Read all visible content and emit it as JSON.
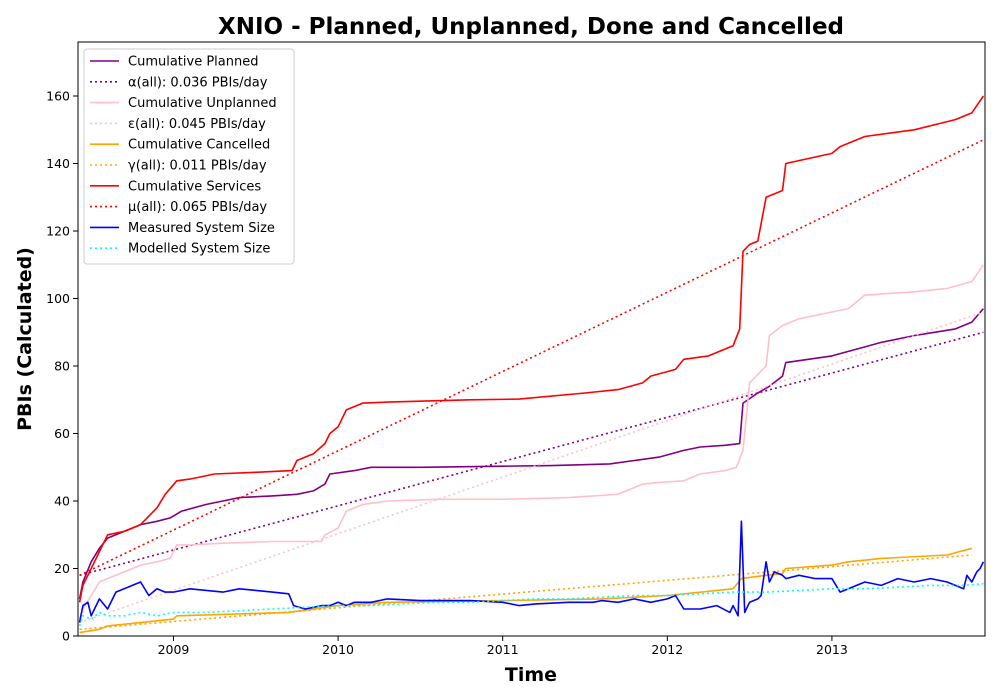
{
  "chart_data": {
    "type": "line",
    "title": "XNIO - Planned, Unplanned, Done  and Cancelled",
    "xlabel": "Time",
    "ylabel": "PBIs (Calculated)",
    "xlim": [
      2008.42,
      2013.93
    ],
    "ylim": [
      0,
      176
    ],
    "x_ticks": [
      {
        "value": 2009,
        "label": "2009"
      },
      {
        "value": 2010,
        "label": "2010"
      },
      {
        "value": 2011,
        "label": "2011"
      },
      {
        "value": 2012,
        "label": "2012"
      },
      {
        "value": 2013,
        "label": "2013"
      }
    ],
    "y_ticks": [
      {
        "value": 0,
        "label": "0"
      },
      {
        "value": 20,
        "label": "20"
      },
      {
        "value": 40,
        "label": "40"
      },
      {
        "value": 60,
        "label": "60"
      },
      {
        "value": 80,
        "label": "80"
      },
      {
        "value": 100,
        "label": "100"
      },
      {
        "value": 120,
        "label": "120"
      },
      {
        "value": 140,
        "label": "140"
      },
      {
        "value": 160,
        "label": "160"
      }
    ],
    "grid": false,
    "legend_position": "upper-left",
    "series": [
      {
        "name": "Cumulative Planned",
        "color": "#800080",
        "style": "solid",
        "x": [
          2008.43,
          2008.45,
          2008.5,
          2008.55,
          2008.6,
          2008.7,
          2008.8,
          2008.9,
          2008.98,
          2009.05,
          2009.2,
          2009.3,
          2009.4,
          2009.6,
          2009.75,
          2009.85,
          2009.92,
          2009.95,
          2010.1,
          2010.2,
          2010.5,
          2011.0,
          2011.3,
          2011.65,
          2011.8,
          2011.95,
          2012.1,
          2012.2,
          2012.35,
          2012.44,
          2012.46,
          2012.55,
          2012.62,
          2012.7,
          2012.72,
          2013.0,
          2013.15,
          2013.3,
          2013.5,
          2013.75,
          2013.85,
          2013.92
        ],
        "y": [
          11,
          16,
          22,
          26,
          29,
          31,
          33,
          34,
          35,
          37,
          39,
          40,
          41,
          41.5,
          42,
          43,
          45,
          48,
          49,
          50,
          50,
          50.3,
          50.5,
          51,
          52,
          53,
          55,
          56,
          56.5,
          57,
          69,
          72,
          74,
          77,
          81,
          83,
          85,
          87,
          89,
          91,
          93,
          97
        ]
      },
      {
        "name": "α(all): 0.036 PBIs/day",
        "color": "#800080",
        "style": "dotted",
        "x": [
          2008.43,
          2013.92
        ],
        "y": [
          18,
          90
        ]
      },
      {
        "name": "Cumulative Unplanned",
        "color": "#ffc0cb",
        "style": "solid",
        "x": [
          2008.43,
          2008.45,
          2008.5,
          2008.55,
          2008.6,
          2008.7,
          2008.8,
          2008.9,
          2008.98,
          2009.02,
          2009.1,
          2009.3,
          2009.6,
          2009.9,
          2009.92,
          2010.0,
          2010.05,
          2010.15,
          2010.3,
          2010.6,
          2011.0,
          2011.4,
          2011.7,
          2011.85,
          2011.95,
          2012.1,
          2012.2,
          2012.35,
          2012.42,
          2012.46,
          2012.5,
          2012.6,
          2012.62,
          2012.7,
          2012.8,
          2013.0,
          2013.1,
          2013.2,
          2013.5,
          2013.7,
          2013.85,
          2013.92
        ],
        "y": [
          5,
          8,
          12,
          16,
          17,
          19,
          21,
          22,
          23,
          27,
          27,
          27.5,
          28,
          28,
          30,
          32,
          37,
          39,
          40,
          40.5,
          40.5,
          41,
          42,
          45,
          45.5,
          46,
          48,
          49,
          50,
          55,
          75,
          80,
          89,
          92,
          94,
          96,
          97,
          101,
          102,
          103,
          105,
          110
        ]
      },
      {
        "name": "ε(all): 0.045 PBIs/day",
        "color": "#ffc0cb",
        "style": "dotted",
        "x": [
          2008.43,
          2013.92
        ],
        "y": [
          4,
          96
        ]
      },
      {
        "name": "Cumulative Cancelled",
        "color": "#ffa500",
        "style": "solid",
        "x": [
          2008.43,
          2008.55,
          2008.6,
          2009.0,
          2009.02,
          2009.7,
          2010.0,
          2010.3,
          2011.0,
          2011.6,
          2012.0,
          2012.4,
          2012.45,
          2012.6,
          2012.7,
          2012.72,
          2013.0,
          2013.1,
          2013.3,
          2013.7,
          2013.85
        ],
        "y": [
          1,
          2,
          3,
          5,
          6,
          7,
          9,
          10,
          10.5,
          11,
          12,
          14,
          17,
          18,
          18.5,
          20,
          21,
          22,
          23,
          24,
          26
        ]
      },
      {
        "name": "γ(all): 0.011 PBIs/day",
        "color": "#ffa500",
        "style": "dotted",
        "x": [
          2008.43,
          2013.85
        ],
        "y": [
          2,
          24
        ]
      },
      {
        "name": "Cumulative Services",
        "color": "#ff0000",
        "style": "solid",
        "x": [
          2008.43,
          2008.45,
          2008.5,
          2008.55,
          2008.6,
          2008.7,
          2008.8,
          2008.9,
          2008.95,
          2009.02,
          2009.1,
          2009.25,
          2009.5,
          2009.72,
          2009.75,
          2009.85,
          2009.92,
          2009.95,
          2010.0,
          2010.05,
          2010.15,
          2010.3,
          2010.8,
          2011.1,
          2011.5,
          2011.7,
          2011.85,
          2011.9,
          2012.05,
          2012.1,
          2012.25,
          2012.4,
          2012.44,
          2012.46,
          2012.5,
          2012.55,
          2012.6,
          2012.7,
          2012.72,
          2013.0,
          2013.05,
          2013.1,
          2013.2,
          2013.5,
          2013.75,
          2013.85,
          2013.92
        ],
        "y": [
          10,
          15,
          20,
          25,
          30,
          31,
          33,
          38,
          42,
          46,
          46.5,
          48,
          48.5,
          49,
          52,
          54,
          57,
          60,
          62,
          67,
          69,
          69.3,
          70,
          70.2,
          72,
          73,
          75,
          77,
          79,
          82,
          83,
          86,
          91,
          114,
          116,
          117,
          130,
          132,
          140,
          143,
          145,
          146,
          148,
          150,
          153,
          155,
          160
        ]
      },
      {
        "name": "μ(all): 0.065 PBIs/day",
        "color": "#ff0000",
        "style": "dotted",
        "x": [
          2008.43,
          2013.92
        ],
        "y": [
          18,
          147
        ]
      },
      {
        "name": "Measured System Size",
        "color": "#0000ff",
        "style": "solid",
        "x": [
          2008.43,
          2008.45,
          2008.48,
          2008.5,
          2008.52,
          2008.55,
          2008.6,
          2008.65,
          2008.7,
          2008.75,
          2008.8,
          2008.85,
          2008.9,
          2008.95,
          2009.0,
          2009.1,
          2009.2,
          2009.3,
          2009.4,
          2009.5,
          2009.6,
          2009.7,
          2009.73,
          2009.8,
          2009.85,
          2009.9,
          2009.95,
          2010.0,
          2010.05,
          2010.1,
          2010.2,
          2010.3,
          2010.5,
          2010.8,
          2011.0,
          2011.1,
          2011.2,
          2011.4,
          2011.55,
          2011.6,
          2011.7,
          2011.8,
          2011.9,
          2012.0,
          2012.05,
          2012.1,
          2012.2,
          2012.3,
          2012.38,
          2012.4,
          2012.43,
          2012.45,
          2012.47,
          2012.5,
          2012.55,
          2012.57,
          2012.6,
          2012.62,
          2012.65,
          2012.7,
          2012.72,
          2012.8,
          2012.9,
          2013.0,
          2013.05,
          2013.1,
          2013.2,
          2013.3,
          2013.4,
          2013.5,
          2013.6,
          2013.7,
          2013.8,
          2013.82,
          2013.85,
          2013.88,
          2013.9,
          2013.92
        ],
        "y": [
          4,
          9,
          10,
          6,
          8,
          11,
          8,
          13,
          14,
          15,
          16,
          12,
          14,
          13,
          13,
          14,
          13.5,
          13,
          14,
          13.5,
          13,
          12.5,
          9,
          8,
          8.5,
          9,
          9,
          10,
          9,
          10,
          10,
          11,
          10.5,
          10.5,
          10,
          9,
          9.5,
          10,
          10,
          10.5,
          10,
          11,
          10,
          11,
          12,
          8,
          8,
          9,
          7,
          9,
          6,
          34,
          7,
          10,
          11,
          12,
          22,
          16,
          19,
          18,
          17,
          18,
          17,
          17,
          13,
          14,
          16,
          15,
          17,
          16,
          17,
          16,
          14,
          18,
          16,
          19,
          20,
          22
        ]
      },
      {
        "name": "Modelled System Size",
        "color": "#00ffff",
        "style": "dotted",
        "x": [
          2008.43,
          2008.45,
          2008.5,
          2008.55,
          2008.6,
          2008.7,
          2008.8,
          2008.9,
          2009.0,
          2009.2,
          2009.4,
          2009.6,
          2009.8,
          2010.0,
          2010.2,
          2010.4,
          2010.6,
          2010.8,
          2011.0,
          2011.2,
          2011.4,
          2011.6,
          2011.8,
          2012.0,
          2012.2,
          2012.4,
          2012.6,
          2012.8,
          2013.0,
          2013.2,
          2013.4,
          2013.6,
          2013.8,
          2013.92
        ],
        "y": [
          3,
          6,
          5,
          7,
          6,
          6,
          7,
          6,
          7,
          7,
          7.5,
          8,
          8.5,
          9,
          9,
          9.5,
          10,
          10,
          10.5,
          11,
          11,
          11.5,
          12,
          12,
          12.5,
          13,
          13,
          13.5,
          14,
          14,
          14.5,
          15,
          15,
          15.5
        ]
      }
    ]
  }
}
